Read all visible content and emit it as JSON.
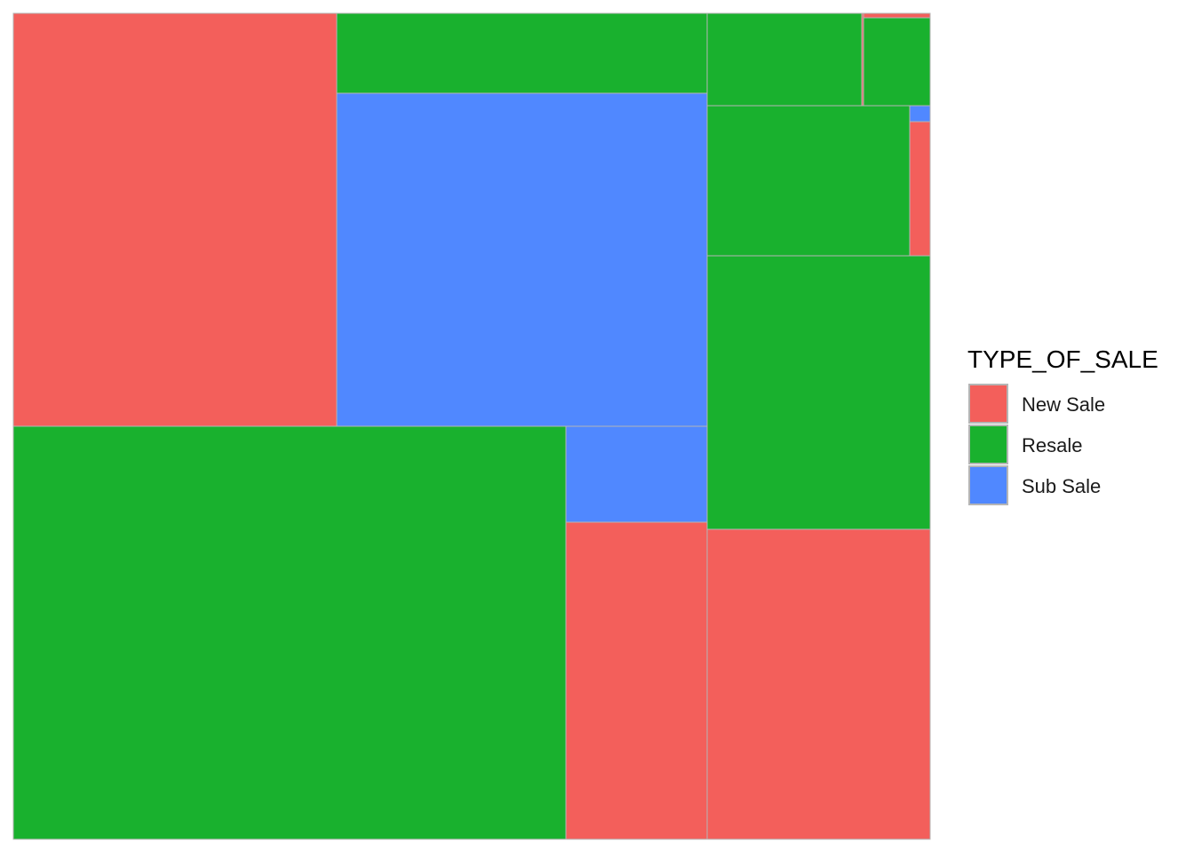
{
  "chart_data": {
    "type": "treemap",
    "legend": {
      "title": "TYPE_OF_SALE",
      "placement": "right",
      "entries": [
        {
          "name": "New Sale",
          "color": "#F35F5B"
        },
        {
          "name": "Resale",
          "color": "#19B12E"
        },
        {
          "name": "Sub Sale",
          "color": "#5088FF"
        }
      ]
    },
    "groups": [
      {
        "category": "New Sale",
        "share_pct": 18.8
      },
      {
        "category": "Resale",
        "share_pct": 19.0
      },
      {
        "category": "Sub Sale",
        "share_pct": 4.0
      },
      {
        "category": "Resale",
        "share_pct": 33.1
      },
      {
        "category": "Sub Sale",
        "share_pct": 1.8
      },
      {
        "category": "New Sale",
        "share_pct": 5.9
      },
      {
        "category": "Resale",
        "share_pct": 1.9
      },
      {
        "category": "New Sale",
        "share_pct": 0.1
      },
      {
        "category": "New Sale",
        "share_pct": 0.1
      },
      {
        "category": "Resale",
        "share_pct": 0.8
      },
      {
        "category": "Resale",
        "share_pct": 4.0
      },
      {
        "category": "Sub Sale",
        "share_pct": 0.1
      },
      {
        "category": "New Sale",
        "share_pct": 0.4
      },
      {
        "category": "Resale",
        "share_pct": 8.0
      },
      {
        "category": "New Sale",
        "share_pct": 9.1
      }
    ]
  }
}
